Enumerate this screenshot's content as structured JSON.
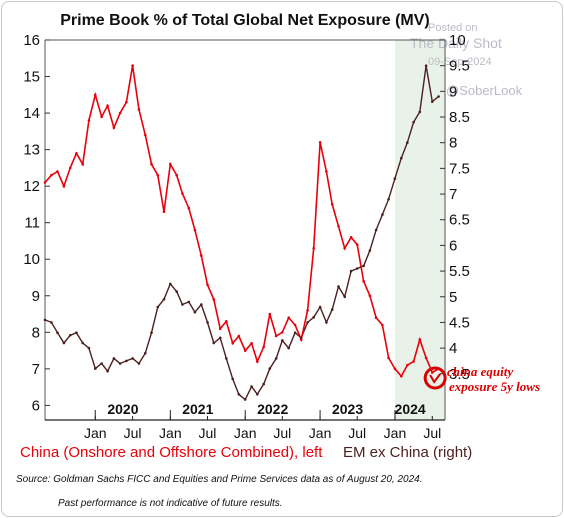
{
  "watermark": {
    "line1": "Posted on",
    "line2": "The Daily Shot",
    "line3": "09-Sep-2024",
    "line4": "@SoberLook"
  },
  "footer": {
    "source": "Source: Goldman Sachs FICC and Equities and Prime Services data as of August 20, 2024.",
    "disclaimer": "Past performance is not indicative of future results."
  },
  "colors": {
    "china": "#e8000b",
    "em_ex_china": "#4a1f1f",
    "shade": "#e9f2e9",
    "annotation": "#d80000"
  },
  "chart_data": {
    "type": "line",
    "title": "Prime Book % of Total Global Net Exposure (MV)",
    "xlim": [
      "2019-05-01",
      "2024-09-01"
    ],
    "ylim_left": [
      5.6,
      16
    ],
    "ylim_right": [
      2.6,
      10
    ],
    "yticks_left": [
      6,
      7,
      8,
      9,
      10,
      11,
      12,
      13,
      14,
      15,
      16
    ],
    "yticks_right": [
      3.5,
      4,
      4.5,
      5,
      5.5,
      6,
      6.5,
      7,
      7.5,
      8,
      8.5,
      9,
      9.5,
      10
    ],
    "year_labels": [
      {
        "label": "2020",
        "x": "2020-05-15"
      },
      {
        "label": "2021",
        "x": "2021-05-15"
      },
      {
        "label": "2022",
        "x": "2022-05-15"
      },
      {
        "label": "2023",
        "x": "2023-05-15"
      },
      {
        "label": "2024",
        "x": "2024-03-15"
      }
    ],
    "month_labels": [
      {
        "label": "Jan",
        "x": "2020-01-01"
      },
      {
        "label": "Jul",
        "x": "2020-07-01"
      },
      {
        "label": "Jan",
        "x": "2021-01-01"
      },
      {
        "label": "Jul",
        "x": "2021-07-01"
      },
      {
        "label": "Jan",
        "x": "2022-01-01"
      },
      {
        "label": "Jul",
        "x": "2022-07-01"
      },
      {
        "label": "Jan",
        "x": "2023-01-01"
      },
      {
        "label": "Jul",
        "x": "2023-07-01"
      },
      {
        "label": "Jan",
        "x": "2024-01-01"
      },
      {
        "label": "Jul",
        "x": "2024-07-01"
      }
    ],
    "shaded_region": [
      "2024-01-01",
      "2024-09-01"
    ],
    "legend": "bottom",
    "series": [
      {
        "name": "China (Onshore and Offshore Combined), left",
        "axis": "left",
        "color": "#e8000b",
        "points": [
          [
            "2019-05-01",
            12.1
          ],
          [
            "2019-06-01",
            12.3
          ],
          [
            "2019-07-01",
            12.4
          ],
          [
            "2019-08-01",
            12.0
          ],
          [
            "2019-09-01",
            12.5
          ],
          [
            "2019-10-01",
            12.9
          ],
          [
            "2019-11-01",
            12.6
          ],
          [
            "2019-12-01",
            13.8
          ],
          [
            "2020-01-01",
            14.5
          ],
          [
            "2020-02-01",
            13.9
          ],
          [
            "2020-03-01",
            14.2
          ],
          [
            "2020-04-01",
            13.6
          ],
          [
            "2020-05-01",
            14.0
          ],
          [
            "2020-06-01",
            14.3
          ],
          [
            "2020-07-01",
            15.3
          ],
          [
            "2020-08-01",
            14.1
          ],
          [
            "2020-09-01",
            13.4
          ],
          [
            "2020-10-01",
            12.6
          ],
          [
            "2020-11-01",
            12.3
          ],
          [
            "2020-12-01",
            11.3
          ],
          [
            "2021-01-01",
            12.6
          ],
          [
            "2021-02-01",
            12.3
          ],
          [
            "2021-03-01",
            11.8
          ],
          [
            "2021-04-01",
            11.4
          ],
          [
            "2021-05-01",
            10.8
          ],
          [
            "2021-06-01",
            10.1
          ],
          [
            "2021-07-01",
            9.3
          ],
          [
            "2021-08-01",
            8.9
          ],
          [
            "2021-09-01",
            8.1
          ],
          [
            "2021-10-01",
            8.3
          ],
          [
            "2021-11-01",
            7.7
          ],
          [
            "2021-12-01",
            7.9
          ],
          [
            "2022-01-01",
            7.5
          ],
          [
            "2022-02-01",
            7.7
          ],
          [
            "2022-03-01",
            7.2
          ],
          [
            "2022-04-01",
            7.6
          ],
          [
            "2022-05-01",
            8.5
          ],
          [
            "2022-06-01",
            7.9
          ],
          [
            "2022-07-01",
            8.0
          ],
          [
            "2022-08-01",
            8.4
          ],
          [
            "2022-09-01",
            8.2
          ],
          [
            "2022-10-01",
            7.8
          ],
          [
            "2022-11-01",
            8.6
          ],
          [
            "2022-12-01",
            10.3
          ],
          [
            "2023-01-01",
            13.2
          ],
          [
            "2023-02-01",
            12.4
          ],
          [
            "2023-03-01",
            11.5
          ],
          [
            "2023-04-01",
            10.9
          ],
          [
            "2023-05-01",
            10.3
          ],
          [
            "2023-06-01",
            10.6
          ],
          [
            "2023-07-01",
            10.4
          ],
          [
            "2023-08-01",
            9.4
          ],
          [
            "2023-09-01",
            9.0
          ],
          [
            "2023-10-01",
            8.4
          ],
          [
            "2023-11-01",
            8.2
          ],
          [
            "2023-12-01",
            7.3
          ],
          [
            "2024-01-01",
            7.0
          ],
          [
            "2024-02-01",
            6.8
          ],
          [
            "2024-03-01",
            7.1
          ],
          [
            "2024-04-01",
            7.2
          ],
          [
            "2024-05-01",
            7.8
          ],
          [
            "2024-06-01",
            7.3
          ],
          [
            "2024-07-01",
            6.9
          ],
          [
            "2024-08-01",
            7.0
          ]
        ]
      },
      {
        "name": "EM ex China (right)",
        "axis": "right",
        "color": "#4a1f1f",
        "points": [
          [
            "2019-05-01",
            4.55
          ],
          [
            "2019-06-01",
            4.5
          ],
          [
            "2019-07-01",
            4.3
          ],
          [
            "2019-08-01",
            4.1
          ],
          [
            "2019-09-01",
            4.25
          ],
          [
            "2019-10-01",
            4.3
          ],
          [
            "2019-11-01",
            4.1
          ],
          [
            "2019-12-01",
            4.0
          ],
          [
            "2020-01-01",
            3.6
          ],
          [
            "2020-02-01",
            3.7
          ],
          [
            "2020-03-01",
            3.55
          ],
          [
            "2020-04-01",
            3.8
          ],
          [
            "2020-05-01",
            3.7
          ],
          [
            "2020-06-01",
            3.75
          ],
          [
            "2020-07-01",
            3.8
          ],
          [
            "2020-08-01",
            3.7
          ],
          [
            "2020-09-01",
            3.9
          ],
          [
            "2020-10-01",
            4.3
          ],
          [
            "2020-11-01",
            4.8
          ],
          [
            "2020-12-01",
            4.95
          ],
          [
            "2021-01-01",
            5.25
          ],
          [
            "2021-02-01",
            5.1
          ],
          [
            "2021-03-01",
            4.85
          ],
          [
            "2021-04-01",
            4.9
          ],
          [
            "2021-05-01",
            4.7
          ],
          [
            "2021-06-01",
            4.85
          ],
          [
            "2021-07-01",
            4.5
          ],
          [
            "2021-08-01",
            4.1
          ],
          [
            "2021-09-01",
            4.2
          ],
          [
            "2021-10-01",
            3.8
          ],
          [
            "2021-11-01",
            3.4
          ],
          [
            "2021-12-01",
            3.1
          ],
          [
            "2022-01-01",
            3.0
          ],
          [
            "2022-02-01",
            3.25
          ],
          [
            "2022-03-01",
            3.1
          ],
          [
            "2022-04-01",
            3.3
          ],
          [
            "2022-05-01",
            3.6
          ],
          [
            "2022-06-01",
            3.8
          ],
          [
            "2022-07-01",
            4.15
          ],
          [
            "2022-08-01",
            4.0
          ],
          [
            "2022-09-01",
            4.3
          ],
          [
            "2022-10-01",
            4.2
          ],
          [
            "2022-11-01",
            4.5
          ],
          [
            "2022-12-01",
            4.6
          ],
          [
            "2023-01-01",
            4.8
          ],
          [
            "2023-02-01",
            4.5
          ],
          [
            "2023-03-01",
            4.75
          ],
          [
            "2023-04-01",
            5.2
          ],
          [
            "2023-05-01",
            5.0
          ],
          [
            "2023-06-01",
            5.5
          ],
          [
            "2023-07-01",
            5.55
          ],
          [
            "2023-08-01",
            5.6
          ],
          [
            "2023-09-01",
            5.9
          ],
          [
            "2023-10-01",
            6.3
          ],
          [
            "2023-11-01",
            6.6
          ],
          [
            "2023-12-01",
            6.9
          ],
          [
            "2024-01-01",
            7.3
          ],
          [
            "2024-02-01",
            7.7
          ],
          [
            "2024-03-01",
            8.0
          ],
          [
            "2024-04-01",
            8.4
          ],
          [
            "2024-05-01",
            8.6
          ],
          [
            "2024-06-01",
            9.5
          ],
          [
            "2024-07-01",
            8.8
          ],
          [
            "2024-08-01",
            8.9
          ]
        ]
      }
    ],
    "annotation": {
      "line1": "china equity",
      "line2": "exposure 5y lows",
      "marker_x": "2024-07-15",
      "marker_y_left": 6.75
    }
  }
}
